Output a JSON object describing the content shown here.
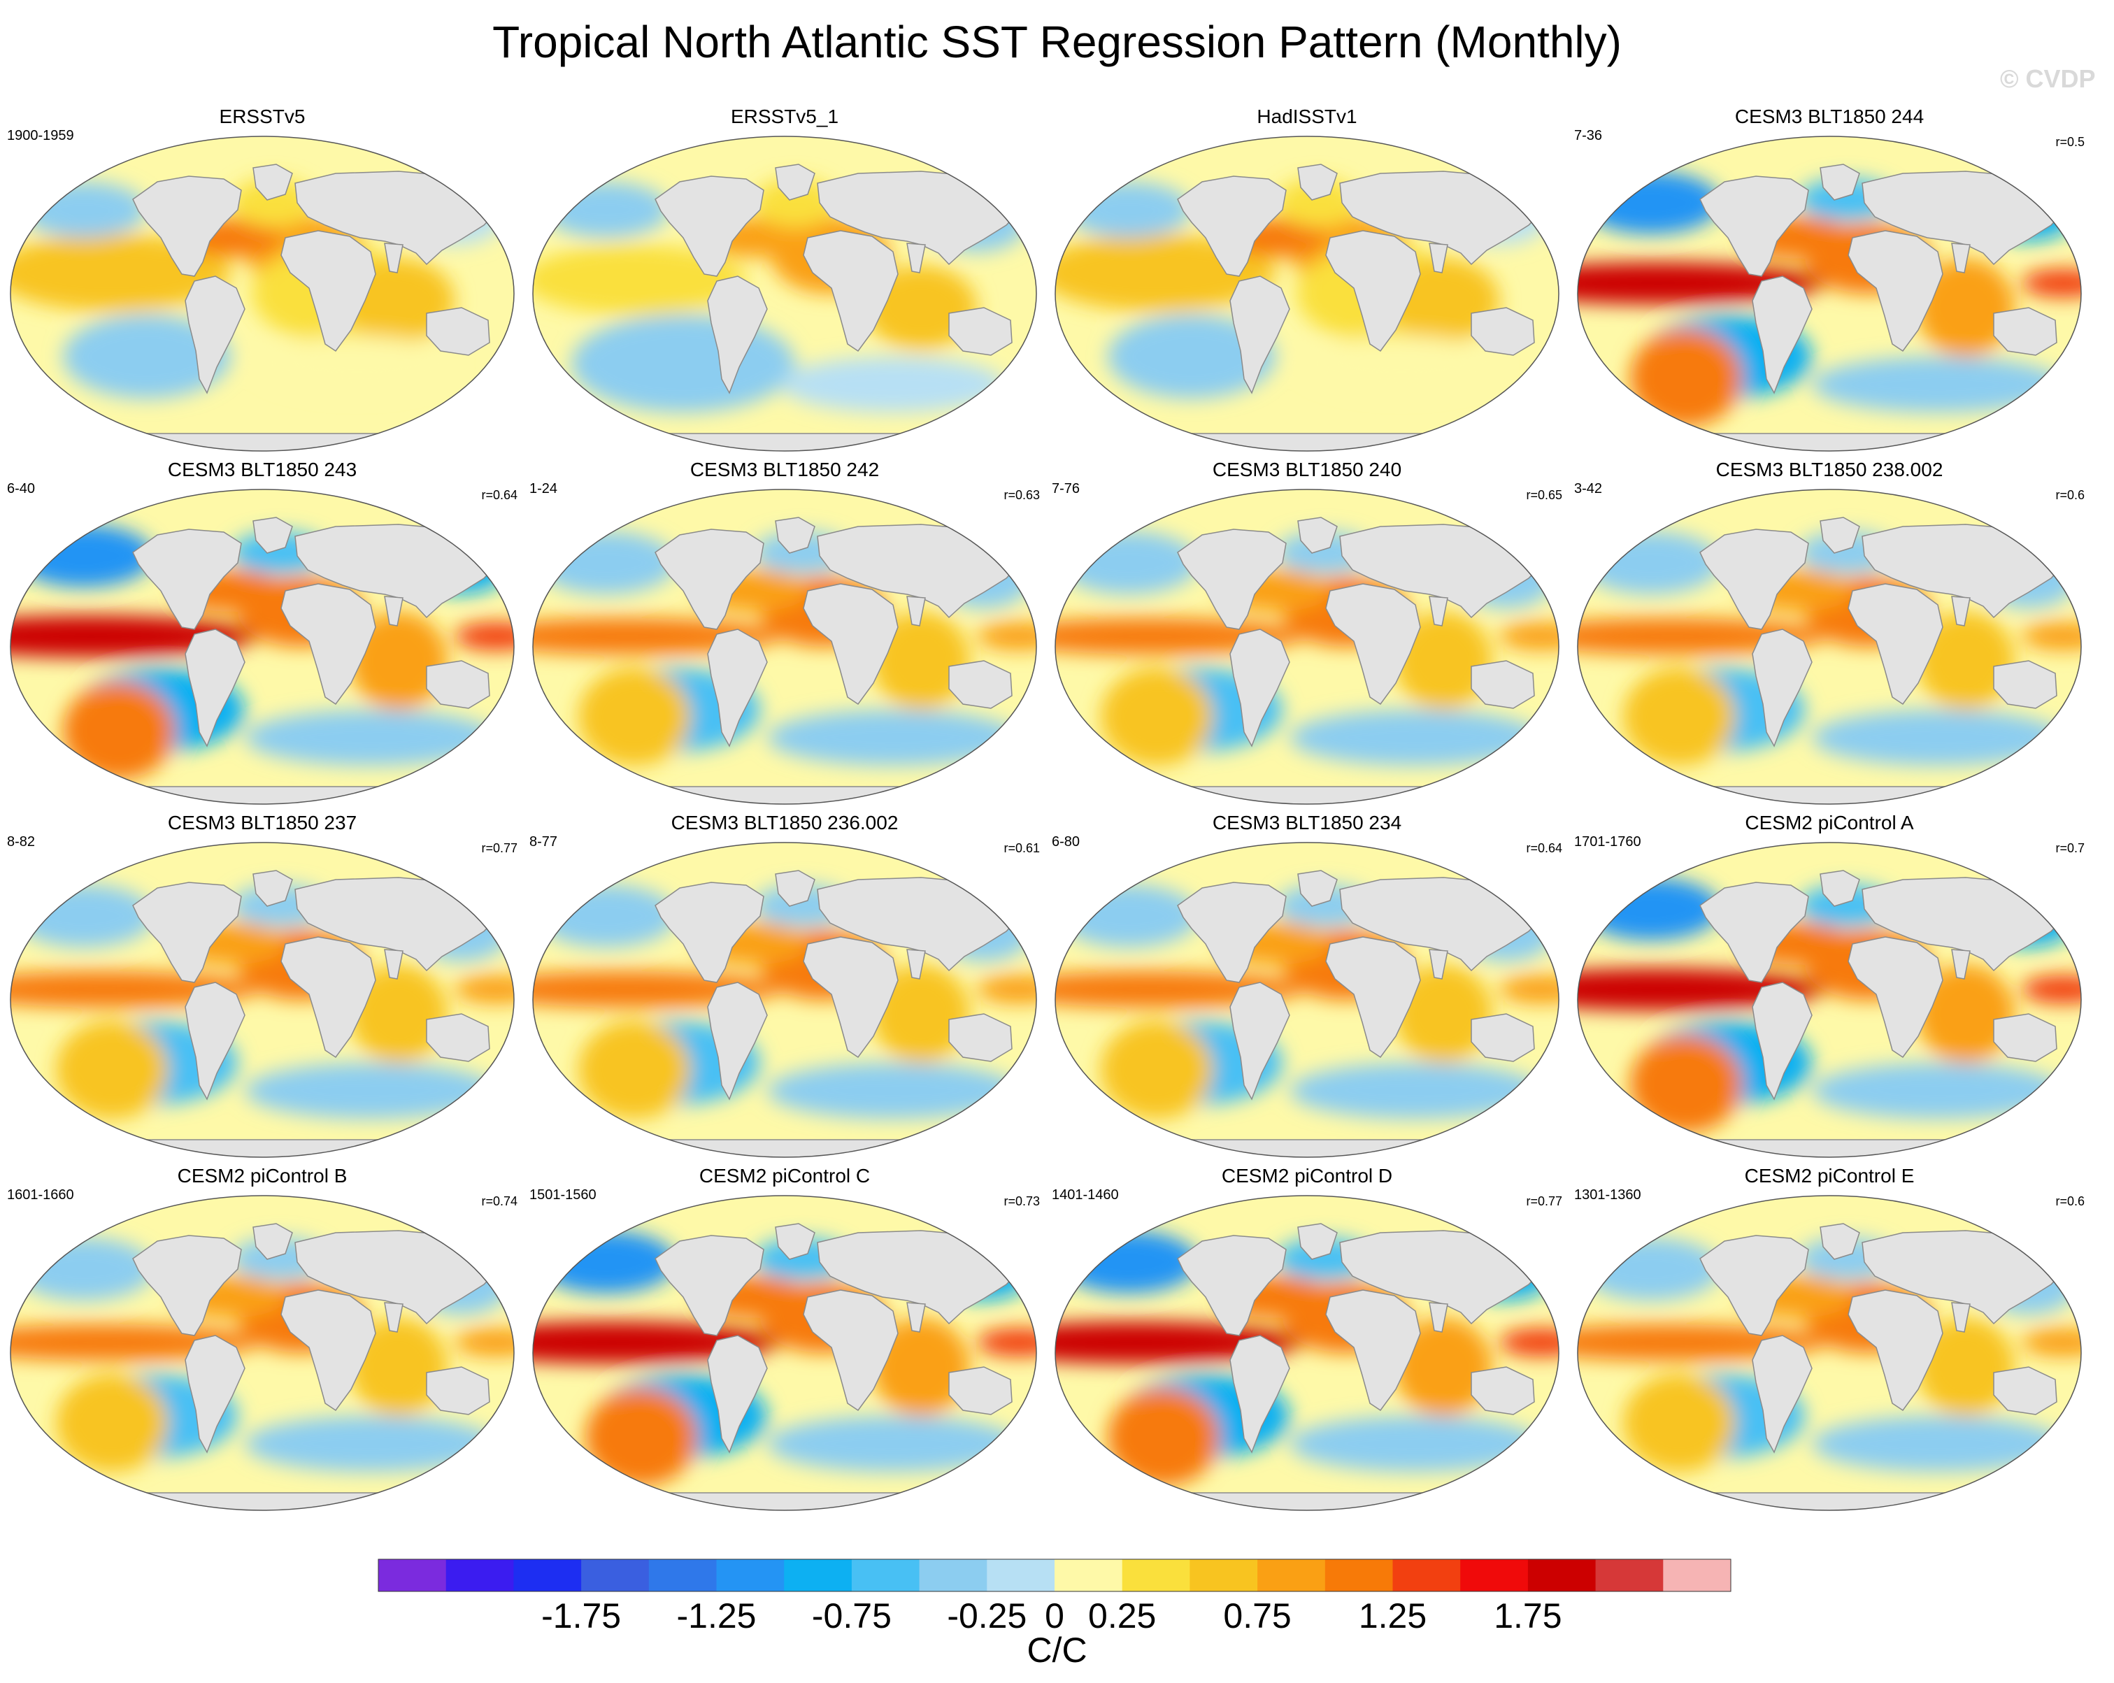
{
  "title": "Tropical North Atlantic SST Regression Pattern (Monthly)",
  "watermark": "© CVDP",
  "chart_data": {
    "type": "heatmap",
    "projection": "Robinson (global map panels)",
    "variable": "SST regression onto Tropical North Atlantic index",
    "units": "C/C",
    "colorbar": {
      "tick_labels": [
        "-1.75",
        "-1.25",
        "-0.75",
        "-0.25",
        "0",
        "0.25",
        "0.75",
        "1.25",
        "1.75"
      ],
      "tick_values": [
        -1.75,
        -1.25,
        -0.75,
        -0.25,
        0,
        0.25,
        0.75,
        1.25,
        1.75
      ],
      "bins": 20,
      "colors": [
        "#7b2bde",
        "#3b1cf0",
        "#1d2ef2",
        "#3a5fe0",
        "#2f78ea",
        "#2494f4",
        "#0db0f2",
        "#48c0f4",
        "#8ccdf0",
        "#b7e0f4",
        "#fef9a8",
        "#fae03c",
        "#f8c420",
        "#faa014",
        "#f77a08",
        "#f24010",
        "#f00a0a",
        "#cc0000",
        "#d63838",
        "#f6b4b4"
      ]
    },
    "panels": [
      {
        "title": "ERSSTv5",
        "period": "1900-1959",
        "corr": "",
        "style": "obs"
      },
      {
        "title": "ERSSTv5_1",
        "period": "",
        "corr": "",
        "style": "obs2"
      },
      {
        "title": "HadISSTv1",
        "period": "",
        "corr": "",
        "style": "obs"
      },
      {
        "title": "CESM3 BLT1850 244",
        "period": "7-36",
        "corr": "r=0.5",
        "style": "strong"
      },
      {
        "title": "CESM3 BLT1850 243",
        "period": "6-40",
        "corr": "r=0.64",
        "style": "strong"
      },
      {
        "title": "CESM3 BLT1850 242",
        "period": "1-24",
        "corr": "r=0.63",
        "style": "model"
      },
      {
        "title": "CESM3 BLT1850 240",
        "period": "7-76",
        "corr": "r=0.65",
        "style": "model"
      },
      {
        "title": "CESM3 BLT1850 238.002",
        "period": "3-42",
        "corr": "r=0.6",
        "style": "model"
      },
      {
        "title": "CESM3 BLT1850 237",
        "period": "8-82",
        "corr": "r=0.77",
        "style": "model"
      },
      {
        "title": "CESM3 BLT1850 236.002",
        "period": "8-77",
        "corr": "r=0.61",
        "style": "model"
      },
      {
        "title": "CESM3 BLT1850 234",
        "period": "6-80",
        "corr": "r=0.64",
        "style": "model"
      },
      {
        "title": "CESM2 piControl A",
        "period": "1701-1760",
        "corr": "r=0.7",
        "style": "strong"
      },
      {
        "title": "CESM2 piControl B",
        "period": "1601-1660",
        "corr": "r=0.74",
        "style": "model"
      },
      {
        "title": "CESM2 piControl C",
        "period": "1501-1560",
        "corr": "r=0.73",
        "style": "strong"
      },
      {
        "title": "CESM2 piControl D",
        "period": "1401-1460",
        "corr": "r=0.77",
        "style": "strong"
      },
      {
        "title": "CESM2 piControl E",
        "period": "1301-1360",
        "corr": "r=0.6",
        "style": "model"
      }
    ]
  }
}
